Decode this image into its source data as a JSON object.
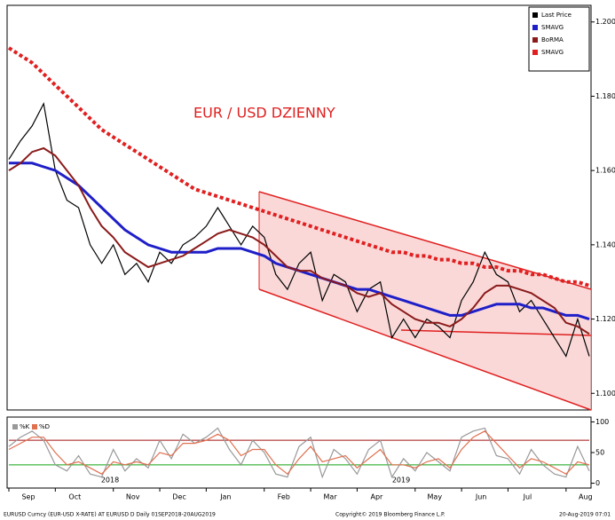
{
  "chart_data": [
    {
      "type": "line",
      "annotation": "EUR / USD DZIENNY",
      "categories": [
        "Sep",
        null,
        null,
        null,
        "Oct",
        null,
        null,
        null,
        null,
        "Nov",
        null,
        null,
        null,
        "Dec",
        null,
        null,
        null,
        "Jan",
        null,
        null,
        null,
        null,
        "Feb",
        null,
        null,
        null,
        "Mar",
        null,
        null,
        null,
        "Apr",
        null,
        null,
        null,
        null,
        "May",
        null,
        null,
        null,
        "Jun",
        null,
        null,
        null,
        "Jul",
        null,
        null,
        null,
        null,
        "Aug",
        null,
        null
      ],
      "years": [
        "2018",
        "2019"
      ],
      "series": [
        {
          "name": "Last Price",
          "color": "#000000",
          "values": [
            1.163,
            1.168,
            1.172,
            1.178,
            1.16,
            1.152,
            1.15,
            1.14,
            1.135,
            1.14,
            1.132,
            1.135,
            1.13,
            1.138,
            1.135,
            1.14,
            1.142,
            1.145,
            1.15,
            1.145,
            1.14,
            1.145,
            1.142,
            1.132,
            1.128,
            1.135,
            1.138,
            1.125,
            1.132,
            1.13,
            1.122,
            1.128,
            1.13,
            1.115,
            1.12,
            1.115,
            1.12,
            1.118,
            1.115,
            1.125,
            1.13,
            1.138,
            1.132,
            1.13,
            1.122,
            1.125,
            1.12,
            1.115,
            1.11,
            1.12,
            1.11
          ]
        },
        {
          "name": "SMAVG",
          "color": "#1f1fc8",
          "dash": false,
          "width": 3,
          "values": [
            1.162,
            1.162,
            1.162,
            1.161,
            1.16,
            1.158,
            1.156,
            1.153,
            1.15,
            1.147,
            1.144,
            1.142,
            1.14,
            1.139,
            1.138,
            1.138,
            1.138,
            1.138,
            1.139,
            1.139,
            1.139,
            1.138,
            1.137,
            1.135,
            1.134,
            1.133,
            1.132,
            1.131,
            1.13,
            1.129,
            1.128,
            1.128,
            1.127,
            1.126,
            1.125,
            1.124,
            1.123,
            1.122,
            1.121,
            1.121,
            1.122,
            1.123,
            1.124,
            1.124,
            1.124,
            1.123,
            1.123,
            1.122,
            1.121,
            1.121,
            1.12
          ]
        },
        {
          "name": "BoRMA",
          "color": "#8b1a1a",
          "dash": false,
          "width": 2,
          "values": [
            1.16,
            1.162,
            1.165,
            1.166,
            1.164,
            1.16,
            1.156,
            1.15,
            1.145,
            1.142,
            1.138,
            1.136,
            1.134,
            1.135,
            1.136,
            1.137,
            1.139,
            1.141,
            1.143,
            1.144,
            1.143,
            1.142,
            1.14,
            1.137,
            1.134,
            1.133,
            1.133,
            1.131,
            1.13,
            1.129,
            1.127,
            1.126,
            1.127,
            1.124,
            1.122,
            1.12,
            1.119,
            1.119,
            1.118,
            1.12,
            1.123,
            1.127,
            1.129,
            1.129,
            1.128,
            1.127,
            1.125,
            1.123,
            1.119,
            1.118,
            1.116
          ]
        },
        {
          "name": "SMAVG",
          "color": "#e02020",
          "dash": true,
          "width": 4,
          "values": [
            1.193,
            1.191,
            1.189,
            1.186,
            1.183,
            1.18,
            1.177,
            1.174,
            1.171,
            1.169,
            1.167,
            1.165,
            1.163,
            1.161,
            1.159,
            1.157,
            1.155,
            1.154,
            1.153,
            1.152,
            1.151,
            1.15,
            1.149,
            1.148,
            1.147,
            1.146,
            1.145,
            1.144,
            1.143,
            1.142,
            1.141,
            1.14,
            1.139,
            1.138,
            1.138,
            1.137,
            1.137,
            1.136,
            1.136,
            1.135,
            1.135,
            1.134,
            1.134,
            1.133,
            1.133,
            1.132,
            1.132,
            1.131,
            1.13,
            1.13,
            1.129
          ]
        }
      ],
      "ylim": [
        1.096,
        1.204
      ],
      "yticks": [
        {
          "value": 1.1,
          "label": "1.100"
        },
        {
          "value": 1.12,
          "label": "1.120"
        },
        {
          "value": 1.14,
          "label": "1.140"
        },
        {
          "value": 1.16,
          "label": "1.160"
        },
        {
          "value": 1.18,
          "label": "1.180"
        },
        {
          "value": 1.2,
          "label": "1.200"
        }
      ],
      "footer_left": "EURUSD Curncy (EUR-USD X-RATE) AT EURUSD D Daily 01SEP2018-20AUG2019",
      "footer_mid": "Copyright© 2019 Bloomberg Finance L.P.",
      "footer_right": "20-Aug-2019 07:01"
    },
    {
      "type": "line",
      "legend": [
        "%K",
        "%D"
      ],
      "series": [
        {
          "name": "%K",
          "color": "#999999",
          "values": [
            60,
            75,
            85,
            70,
            30,
            20,
            45,
            15,
            10,
            55,
            20,
            40,
            25,
            70,
            40,
            80,
            65,
            75,
            90,
            55,
            30,
            70,
            50,
            15,
            10,
            60,
            75,
            10,
            55,
            40,
            15,
            55,
            70,
            10,
            40,
            20,
            50,
            35,
            20,
            75,
            85,
            90,
            45,
            40,
            15,
            55,
            30,
            15,
            10,
            60,
            20
          ]
        },
        {
          "name": "%D",
          "color": "#e07050",
          "values": [
            55,
            65,
            75,
            75,
            50,
            30,
            35,
            25,
            15,
            35,
            30,
            35,
            30,
            50,
            45,
            65,
            65,
            70,
            80,
            70,
            45,
            55,
            55,
            30,
            15,
            40,
            60,
            35,
            40,
            45,
            25,
            40,
            55,
            30,
            30,
            25,
            35,
            40,
            25,
            55,
            75,
            85,
            65,
            45,
            25,
            40,
            35,
            25,
            15,
            35,
            30
          ]
        }
      ],
      "hlines": [
        {
          "value": 70,
          "color": "#a01010"
        },
        {
          "value": 30,
          "color": "#10a010"
        }
      ],
      "ylim": [
        -5,
        105
      ],
      "yticks": [
        0,
        50,
        100
      ]
    }
  ]
}
